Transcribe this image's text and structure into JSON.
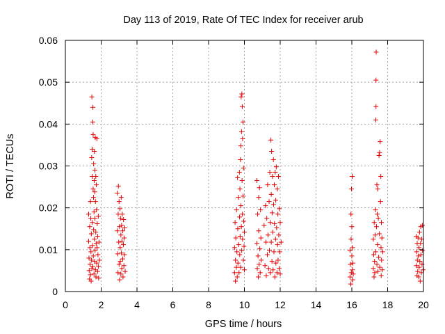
{
  "chart_data": {
    "type": "scatter",
    "title": "Day 113 of 2019, Rate Of TEC Index for receiver arub",
    "xlabel": "GPS time / hours",
    "ylabel": "ROTI / TECUs",
    "xlim": [
      0,
      20
    ],
    "ylim": [
      0,
      0.06
    ],
    "xticks": [
      0,
      2,
      4,
      6,
      8,
      10,
      12,
      14,
      16,
      18,
      20
    ],
    "yticks": [
      0,
      0.01,
      0.02,
      0.03,
      0.04,
      0.05,
      0.06
    ],
    "xtick_labels": [
      "0",
      "2",
      "4",
      "6",
      "8",
      "10",
      "12",
      "14",
      "16",
      "18",
      "20"
    ],
    "ytick_labels": [
      "0",
      "0.01",
      "0.02",
      "0.03",
      "0.04",
      "0.05",
      "0.06"
    ],
    "grid": true,
    "marker": "+",
    "marker_color": "#e00000",
    "series": [
      {
        "name": "ROTI",
        "points": [
          [
            1.3,
            0.0185
          ],
          [
            1.3,
            0.012
          ],
          [
            1.32,
            0.008
          ],
          [
            1.33,
            0.005
          ],
          [
            1.35,
            0.003
          ],
          [
            1.36,
            0.0155
          ],
          [
            1.37,
            0.0105
          ],
          [
            1.38,
            0.0065
          ],
          [
            1.4,
            0.0215
          ],
          [
            1.4,
            0.004
          ],
          [
            1.42,
            0.0175
          ],
          [
            1.43,
            0.0095
          ],
          [
            1.44,
            0.0025
          ],
          [
            1.45,
            0.0138
          ],
          [
            1.46,
            0.0075
          ],
          [
            1.47,
            0.032
          ],
          [
            1.48,
            0.0465
          ],
          [
            1.48,
            0.0055
          ],
          [
            1.5,
            0.034
          ],
          [
            1.5,
            0.0275
          ],
          [
            1.51,
            0.0165
          ],
          [
            1.52,
            0.011
          ],
          [
            1.53,
            0.0405
          ],
          [
            1.53,
            0.006
          ],
          [
            1.54,
            0.044
          ],
          [
            1.55,
            0.0375
          ],
          [
            1.55,
            0.0245
          ],
          [
            1.56,
            0.0085
          ],
          [
            1.57,
            0.0225
          ],
          [
            1.58,
            0.0305
          ],
          [
            1.58,
            0.0148
          ],
          [
            1.6,
            0.019
          ],
          [
            1.6,
            0.0042
          ],
          [
            1.61,
            0.0265
          ],
          [
            1.62,
            0.0335
          ],
          [
            1.62,
            0.0125
          ],
          [
            1.63,
            0.0072
          ],
          [
            1.64,
            0.0238
          ],
          [
            1.65,
            0.029
          ],
          [
            1.65,
            0.0175
          ],
          [
            1.66,
            0.0098
          ],
          [
            1.67,
            0.0368
          ],
          [
            1.68,
            0.0052
          ],
          [
            1.68,
            0.0215
          ],
          [
            1.7,
            0.0142
          ],
          [
            1.7,
            0.0275
          ],
          [
            1.71,
            0.0035
          ],
          [
            1.72,
            0.0115
          ],
          [
            1.73,
            0.0255
          ],
          [
            1.74,
            0.0195
          ],
          [
            1.75,
            0.0068
          ],
          [
            1.76,
            0.0365
          ],
          [
            1.77,
            0.0105
          ],
          [
            1.78,
            0.0162
          ],
          [
            1.8,
            0.0048
          ],
          [
            1.8,
            0.0132
          ],
          [
            1.82,
            0.0088
          ],
          [
            1.84,
            0.018
          ],
          [
            1.85,
            0.006
          ],
          [
            1.86,
            0.0032
          ],
          [
            1.88,
            0.0118
          ],
          [
            1.9,
            0.0075
          ],
          [
            2.9,
            0.0235
          ],
          [
            2.9,
            0.0145
          ],
          [
            2.92,
            0.009
          ],
          [
            2.94,
            0.0045
          ],
          [
            2.95,
            0.0185
          ],
          [
            2.96,
            0.0252
          ],
          [
            2.98,
            0.0118
          ],
          [
            3.0,
            0.0065
          ],
          [
            3.0,
            0.0215
          ],
          [
            3.02,
            0.0155
          ],
          [
            3.03,
            0.0028
          ],
          [
            3.05,
            0.0198
          ],
          [
            3.06,
            0.0105
          ],
          [
            3.07,
            0.0072
          ],
          [
            3.08,
            0.0175
          ],
          [
            3.1,
            0.0135
          ],
          [
            3.1,
            0.0042
          ],
          [
            3.12,
            0.0225
          ],
          [
            3.13,
            0.0092
          ],
          [
            3.14,
            0.0158
          ],
          [
            3.15,
            0.0055
          ],
          [
            3.16,
            0.012
          ],
          [
            3.18,
            0.0185
          ],
          [
            3.2,
            0.0078
          ],
          [
            3.2,
            0.0145
          ],
          [
            3.22,
            0.0035
          ],
          [
            3.24,
            0.0112
          ],
          [
            3.25,
            0.0172
          ],
          [
            3.27,
            0.0062
          ],
          [
            3.28,
            0.0128
          ],
          [
            3.3,
            0.0088
          ],
          [
            3.32,
            0.0152
          ],
          [
            3.34,
            0.0048
          ],
          [
            9.45,
            0.0105
          ],
          [
            9.45,
            0.0045
          ],
          [
            9.48,
            0.0165
          ],
          [
            9.5,
            0.0075
          ],
          [
            9.5,
            0.0025
          ],
          [
            9.52,
            0.0128
          ],
          [
            9.55,
            0.0058
          ],
          [
            9.56,
            0.0195
          ],
          [
            9.58,
            0.0095
          ],
          [
            9.6,
            0.0035
          ],
          [
            9.62,
            0.0272
          ],
          [
            9.63,
            0.015
          ],
          [
            9.64,
            0.0068
          ],
          [
            9.66,
            0.0225
          ],
          [
            9.68,
            0.0112
          ],
          [
            9.7,
            0.0045
          ],
          [
            9.72,
            0.0285
          ],
          [
            9.73,
            0.0178
          ],
          [
            9.74,
            0.0088
          ],
          [
            9.75,
            0.0245
          ],
          [
            9.76,
            0.0132
          ],
          [
            9.78,
            0.0315
          ],
          [
            9.79,
            0.0058
          ],
          [
            9.8,
            0.0205
          ],
          [
            9.8,
            0.0348
          ],
          [
            9.82,
            0.0465
          ],
          [
            9.83,
            0.0155
          ],
          [
            9.84,
            0.0382
          ],
          [
            9.85,
            0.0098
          ],
          [
            9.86,
            0.0472
          ],
          [
            9.87,
            0.0265
          ],
          [
            9.88,
            0.0442
          ],
          [
            9.89,
            0.0185
          ],
          [
            9.9,
            0.0365
          ],
          [
            9.9,
            0.0125
          ],
          [
            9.92,
            0.0405
          ],
          [
            9.93,
            0.0228
          ],
          [
            9.94,
            0.0075
          ],
          [
            9.95,
            0.0295
          ],
          [
            9.96,
            0.0168
          ],
          [
            9.98,
            0.0108
          ],
          [
            10.0,
            0.0052
          ],
          [
            10.0,
            0.0142
          ],
          [
            10.7,
            0.0265
          ],
          [
            10.7,
            0.0115
          ],
          [
            10.72,
            0.0055
          ],
          [
            10.74,
            0.0185
          ],
          [
            10.76,
            0.0085
          ],
          [
            10.78,
            0.0035
          ],
          [
            10.8,
            0.0225
          ],
          [
            10.8,
            0.0145
          ],
          [
            10.82,
            0.0065
          ],
          [
            10.84,
            0.0248
          ],
          [
            10.86,
            0.0102
          ],
          [
            10.88,
            0.0045
          ],
          [
            10.9,
            0.0195
          ],
          [
            10.92,
            0.0128
          ],
          [
            10.94,
            0.0075
          ],
          [
            11.1,
            0.0158
          ],
          [
            11.15,
            0.0062
          ],
          [
            11.18,
            0.0205
          ],
          [
            11.2,
            0.0118
          ],
          [
            11.22,
            0.0038
          ],
          [
            11.25,
            0.0175
          ],
          [
            11.28,
            0.0088
          ],
          [
            11.3,
            0.0255
          ],
          [
            11.32,
            0.0135
          ],
          [
            11.35,
            0.0055
          ],
          [
            11.38,
            0.0215
          ],
          [
            11.4,
            0.0098
          ],
          [
            11.42,
            0.0285
          ],
          [
            11.44,
            0.0165
          ],
          [
            11.45,
            0.0045
          ],
          [
            11.48,
            0.0362
          ],
          [
            11.5,
            0.0232
          ],
          [
            11.5,
            0.0118
          ],
          [
            11.52,
            0.0335
          ],
          [
            11.54,
            0.0072
          ],
          [
            11.55,
            0.0188
          ],
          [
            11.57,
            0.0275
          ],
          [
            11.58,
            0.0142
          ],
          [
            11.6,
            0.0052
          ],
          [
            11.62,
            0.0315
          ],
          [
            11.63,
            0.0208
          ],
          [
            11.65,
            0.0095
          ],
          [
            11.67,
            0.0255
          ],
          [
            11.68,
            0.0162
          ],
          [
            11.7,
            0.0035
          ],
          [
            11.72,
            0.0285
          ],
          [
            11.74,
            0.0125
          ],
          [
            11.75,
            0.0218
          ],
          [
            11.76,
            0.0068
          ],
          [
            11.78,
            0.0298
          ],
          [
            11.8,
            0.0152
          ],
          [
            11.82,
            0.0045
          ],
          [
            11.84,
            0.0245
          ],
          [
            11.85,
            0.0112
          ],
          [
            11.87,
            0.0185
          ],
          [
            11.88,
            0.0075
          ],
          [
            11.9,
            0.0275
          ],
          [
            11.92,
            0.0135
          ],
          [
            11.94,
            0.0055
          ],
          [
            11.95,
            0.0198
          ],
          [
            11.97,
            0.0095
          ],
          [
            12.0,
            0.0165
          ],
          [
            12.0,
            0.0042
          ],
          [
            12.05,
            0.0118
          ],
          [
            15.9,
            0.0098
          ],
          [
            15.9,
            0.0035
          ],
          [
            15.92,
            0.0065
          ],
          [
            15.94,
            0.0018
          ],
          [
            15.95,
            0.0185
          ],
          [
            15.96,
            0.0125
          ],
          [
            15.97,
            0.0045
          ],
          [
            15.98,
            0.0245
          ],
          [
            16.0,
            0.0085
          ],
          [
            16.0,
            0.0155
          ],
          [
            16.02,
            0.0275
          ],
          [
            16.03,
            0.0052
          ],
          [
            16.04,
            0.0105
          ],
          [
            16.05,
            0.0028
          ],
          [
            16.06,
            0.0068
          ],
          [
            16.08,
            0.0042
          ],
          [
            17.2,
            0.0125
          ],
          [
            17.2,
            0.0055
          ],
          [
            17.22,
            0.0088
          ],
          [
            17.24,
            0.0035
          ],
          [
            17.25,
            0.0165
          ],
          [
            17.27,
            0.0072
          ],
          [
            17.28,
            0.0045
          ],
          [
            17.3,
            0.0135
          ],
          [
            17.32,
            0.0195
          ],
          [
            17.33,
            0.0095
          ],
          [
            17.34,
            0.041
          ],
          [
            17.35,
            0.0442
          ],
          [
            17.35,
            0.0505
          ],
          [
            17.36,
            0.0572
          ],
          [
            17.38,
            0.0155
          ],
          [
            17.4,
            0.0255
          ],
          [
            17.4,
            0.0065
          ],
          [
            17.42,
            0.0185
          ],
          [
            17.44,
            0.0112
          ],
          [
            17.45,
            0.0245
          ],
          [
            17.46,
            0.0048
          ],
          [
            17.48,
            0.0175
          ],
          [
            17.5,
            0.0082
          ],
          [
            17.52,
            0.0325
          ],
          [
            17.54,
            0.0138
          ],
          [
            17.55,
            0.0332
          ],
          [
            17.56,
            0.0058
          ],
          [
            17.58,
            0.0358
          ],
          [
            17.6,
            0.0215
          ],
          [
            17.62,
            0.0275
          ],
          [
            17.63,
            0.0105
          ],
          [
            17.64,
            0.0038
          ],
          [
            17.65,
            0.0165
          ],
          [
            17.66,
            0.0075
          ],
          [
            17.68,
            0.0128
          ],
          [
            17.7,
            0.0052
          ],
          [
            17.72,
            0.0095
          ],
          [
            19.6,
            0.0132
          ],
          [
            19.6,
            0.0062
          ],
          [
            19.62,
            0.0095
          ],
          [
            19.64,
            0.0038
          ],
          [
            19.65,
            0.0115
          ],
          [
            19.66,
            0.0075
          ],
          [
            19.68,
            0.0048
          ],
          [
            19.7,
            0.0128
          ],
          [
            19.72,
            0.0085
          ],
          [
            19.74,
            0.0035
          ],
          [
            19.75,
            0.0105
          ],
          [
            19.76,
            0.0058
          ],
          [
            19.78,
            0.0142
          ],
          [
            19.8,
            0.0072
          ],
          [
            19.82,
            0.0025
          ],
          [
            19.84,
            0.0115
          ],
          [
            19.85,
            0.0155
          ],
          [
            19.86,
            0.0088
          ],
          [
            19.88,
            0.0045
          ],
          [
            19.9,
            0.0125
          ],
          [
            19.92,
            0.0065
          ],
          [
            19.94,
            0.0158
          ],
          [
            19.95,
            0.0098
          ],
          [
            19.98,
            0.0052
          ]
        ]
      }
    ]
  }
}
